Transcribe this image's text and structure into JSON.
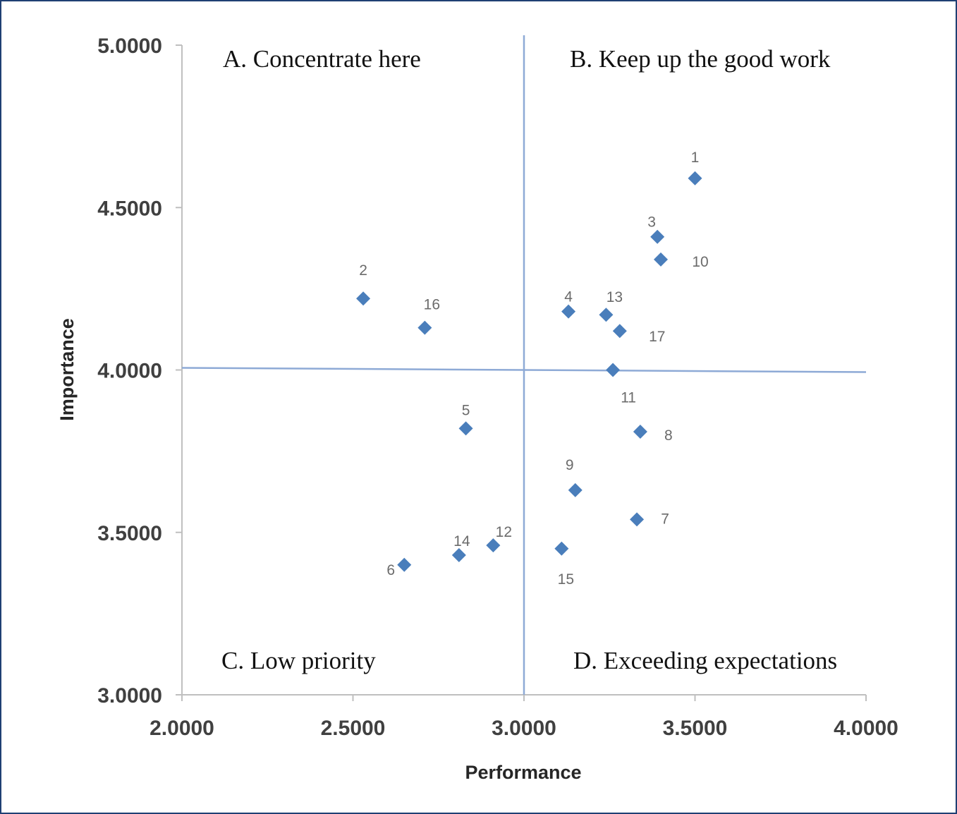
{
  "chart_data": {
    "type": "scatter",
    "xlabel": "Performance",
    "ylabel": "Importance",
    "xlim": [
      2.0,
      4.0
    ],
    "ylim": [
      3.0,
      5.0
    ],
    "xticks": [
      "2.0000",
      "2.5000",
      "3.0000",
      "3.5000",
      "4.0000"
    ],
    "yticks": [
      "3.0000",
      "3.5000",
      "4.0000",
      "4.5000",
      "5.0000"
    ],
    "divider_x": 3.0,
    "divider_y": 4.0,
    "marker_color": "#4a7ebb",
    "divider_color": "#8eaad6",
    "quadrants": {
      "a": "A. Concentrate here",
      "b": "B. Keep up the good work",
      "c": "C. Low priority",
      "d": "D. Exceeding expectations"
    },
    "points": [
      {
        "label": "1",
        "x": 3.5,
        "y": 4.59
      },
      {
        "label": "2",
        "x": 2.53,
        "y": 4.22
      },
      {
        "label": "3",
        "x": 3.39,
        "y": 4.41
      },
      {
        "label": "4",
        "x": 3.13,
        "y": 4.18
      },
      {
        "label": "5",
        "x": 2.83,
        "y": 3.82
      },
      {
        "label": "6",
        "x": 2.65,
        "y": 3.4
      },
      {
        "label": "7",
        "x": 3.33,
        "y": 3.54
      },
      {
        "label": "8",
        "x": 3.34,
        "y": 3.81
      },
      {
        "label": "9",
        "x": 3.15,
        "y": 3.63
      },
      {
        "label": "10",
        "x": 3.4,
        "y": 4.34
      },
      {
        "label": "11",
        "x": 3.26,
        "y": 4.0
      },
      {
        "label": "12",
        "x": 2.91,
        "y": 3.46
      },
      {
        "label": "13",
        "x": 3.24,
        "y": 4.17
      },
      {
        "label": "14",
        "x": 2.81,
        "y": 3.43
      },
      {
        "label": "15",
        "x": 3.11,
        "y": 3.45
      },
      {
        "label": "16",
        "x": 2.71,
        "y": 4.13
      },
      {
        "label": "17",
        "x": 3.28,
        "y": 4.12
      }
    ]
  }
}
